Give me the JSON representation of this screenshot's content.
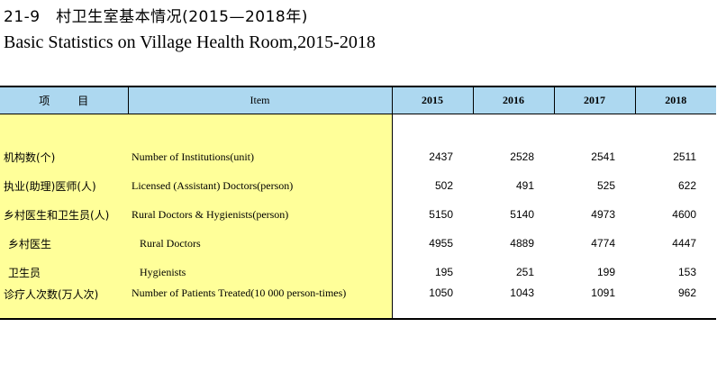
{
  "title": {
    "cn": "21-9　村卫生室基本情况(2015—2018年)",
    "en": "Basic Statistics on Village Health Room,2015-2018"
  },
  "header": {
    "item_cn": "项 目",
    "item_en": "Item",
    "years": [
      "2015",
      "2016",
      "2017",
      "2018"
    ]
  },
  "rows": [
    {
      "cn": "机构数(个)",
      "en": "Number of Institutions(unit)",
      "values": [
        "2437",
        "2528",
        "2541",
        "2511"
      ],
      "indent": false
    },
    {
      "cn": "执业(助理)医师(人)",
      "en": "Licensed (Assistant) Doctors(person)",
      "values": [
        "502",
        "491",
        "525",
        "622"
      ],
      "indent": false
    },
    {
      "cn": "乡村医生和卫生员(人)",
      "en": "Rural Doctors & Hygienists(person)",
      "values": [
        "5150",
        "5140",
        "4973",
        "4600"
      ],
      "indent": false
    },
    {
      "cn": "乡村医生",
      "en": "Rural Doctors",
      "values": [
        "4955",
        "4889",
        "4774",
        "4447"
      ],
      "indent": true
    },
    {
      "cn": "卫生员",
      "en": "Hygienists",
      "values": [
        "195",
        "251",
        "199",
        "153"
      ],
      "indent": true
    },
    {
      "cn": "诊疗人次数(万人次)",
      "en": "Number of Patients Treated(10 000 person-times)",
      "values": [
        "1050",
        "1043",
        "1091",
        "962"
      ],
      "indent": false
    }
  ]
}
